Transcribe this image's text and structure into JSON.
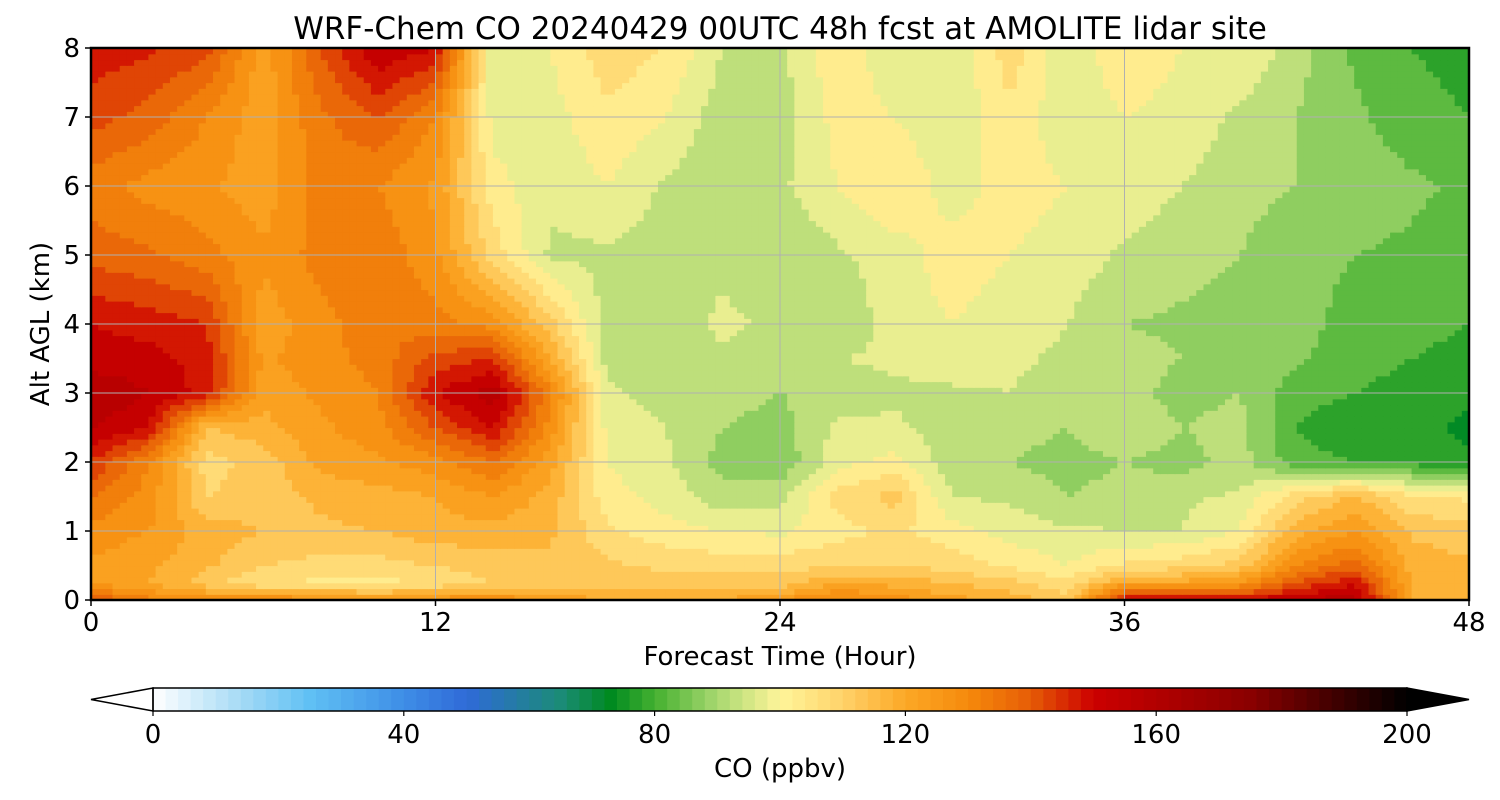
{
  "chart_data": {
    "type": "heatmap",
    "title": "WRF-Chem CO  20240429 00UTC 48h fcst at AMOLITE lidar site",
    "xlabel": "Forecast Time (Hour)",
    "ylabel": "Alt AGL (km)",
    "xlim": [
      0,
      48
    ],
    "ylim": [
      0,
      8
    ],
    "xticks": [
      0,
      12,
      24,
      36,
      48
    ],
    "yticks": [
      0,
      1,
      2,
      3,
      4,
      5,
      6,
      7,
      8
    ],
    "grid": true,
    "x_hours": [
      0,
      2,
      4,
      6,
      8,
      10,
      12,
      14,
      16,
      18,
      20,
      22,
      24,
      26,
      28,
      30,
      32,
      34,
      36,
      38,
      40,
      42,
      44,
      46,
      48
    ],
    "y_km": [
      0,
      0.25,
      0.5,
      1,
      1.5,
      2,
      2.5,
      3,
      3.5,
      4,
      5,
      6,
      7,
      8
    ],
    "values": [
      [
        140,
        132,
        128,
        130,
        128,
        126,
        128,
        130,
        124,
        120,
        118,
        120,
        125,
        132,
        128,
        122,
        118,
        112,
        150,
        152,
        150,
        156,
        158,
        120,
        118
      ],
      [
        124,
        120,
        112,
        105,
        104,
        103,
        106,
        110,
        112,
        112,
        112,
        113,
        112,
        120,
        118,
        115,
        112,
        106,
        122,
        122,
        126,
        140,
        150,
        120,
        116
      ],
      [
        124,
        121,
        116,
        110,
        108,
        108,
        110,
        112,
        114,
        111,
        109,
        108,
        108,
        110,
        110,
        108,
        104,
        100,
        106,
        108,
        112,
        130,
        138,
        118,
        116
      ],
      [
        128,
        125,
        118,
        115,
        114,
        115,
        118,
        118,
        116,
        106,
        102,
        100,
        99,
        103,
        106,
        102,
        98,
        96,
        95,
        95,
        100,
        118,
        125,
        114,
        112
      ],
      [
        135,
        128,
        110,
        112,
        116,
        118,
        120,
        125,
        118,
        102,
        98,
        92,
        93,
        107,
        112,
        95,
        94,
        90,
        92,
        94,
        96,
        108,
        116,
        106,
        104
      ],
      [
        145,
        130,
        108,
        112,
        122,
        124,
        128,
        135,
        122,
        100,
        96,
        88,
        86,
        98,
        102,
        92,
        90,
        88,
        90,
        88,
        92,
        82,
        80,
        78,
        76
      ],
      [
        155,
        150,
        115,
        118,
        124,
        128,
        140,
        150,
        128,
        98,
        95,
        90,
        88,
        96,
        96,
        92,
        92,
        90,
        94,
        90,
        92,
        80,
        76,
        76,
        74
      ],
      [
        160,
        155,
        148,
        122,
        126,
        130,
        150,
        158,
        132,
        96,
        93,
        92,
        90,
        92,
        94,
        94,
        95,
        92,
        92,
        88,
        90,
        82,
        80,
        78,
        76
      ],
      [
        152,
        152,
        148,
        124,
        128,
        132,
        142,
        145,
        120,
        93,
        94,
        94,
        92,
        95,
        96,
        98,
        96,
        94,
        92,
        90,
        90,
        86,
        82,
        80,
        78
      ],
      [
        150,
        148,
        145,
        122,
        128,
        134,
        132,
        128,
        112,
        92,
        92,
        96,
        94,
        90,
        98,
        100,
        98,
        95,
        90,
        89,
        88,
        86,
        84,
        82,
        80
      ],
      [
        138,
        136,
        132,
        126,
        132,
        134,
        126,
        108,
        94,
        94,
        93,
        94,
        90,
        94,
        98,
        102,
        100,
        98,
        94,
        92,
        90,
        86,
        85,
        84,
        82
      ],
      [
        132,
        128,
        126,
        122,
        132,
        130,
        124,
        102,
        96,
        100,
        94,
        92,
        94,
        100,
        104,
        98,
        102,
        100,
        98,
        95,
        92,
        90,
        88,
        86,
        84
      ],
      [
        142,
        138,
        130,
        122,
        134,
        140,
        130,
        98,
        98,
        104,
        100,
        92,
        92,
        102,
        100,
        96,
        104,
        96,
        100,
        98,
        94,
        90,
        86,
        82,
        80
      ],
      [
        148,
        146,
        142,
        122,
        140,
        155,
        150,
        96,
        100,
        108,
        105,
        95,
        94,
        104,
        96,
        95,
        108,
        96,
        104,
        100,
        100,
        92,
        84,
        80,
        78
      ]
    ],
    "colorbar": {
      "label": "CO  (ppbv)",
      "min": 0,
      "max": 200,
      "ticks": [
        0,
        40,
        80,
        120,
        160,
        200
      ],
      "extend": "both",
      "stops": [
        {
          "v": 0,
          "c": "#ffffff"
        },
        {
          "v": 15,
          "c": "#9fd8f5"
        },
        {
          "v": 25,
          "c": "#60c0f4"
        },
        {
          "v": 40,
          "c": "#3e8ee6"
        },
        {
          "v": 50,
          "c": "#2f6ad8"
        },
        {
          "v": 65,
          "c": "#1b8b77"
        },
        {
          "v": 73,
          "c": "#008a20"
        },
        {
          "v": 80,
          "c": "#44b030"
        },
        {
          "v": 90,
          "c": "#a8d870"
        },
        {
          "v": 100,
          "c": "#fff59a"
        },
        {
          "v": 110,
          "c": "#ffd26a"
        },
        {
          "v": 120,
          "c": "#fca826"
        },
        {
          "v": 130,
          "c": "#f58a0c"
        },
        {
          "v": 140,
          "c": "#e65c06"
        },
        {
          "v": 150,
          "c": "#cc0000"
        },
        {
          "v": 175,
          "c": "#8a0000"
        },
        {
          "v": 200,
          "c": "#000000"
        }
      ]
    }
  }
}
